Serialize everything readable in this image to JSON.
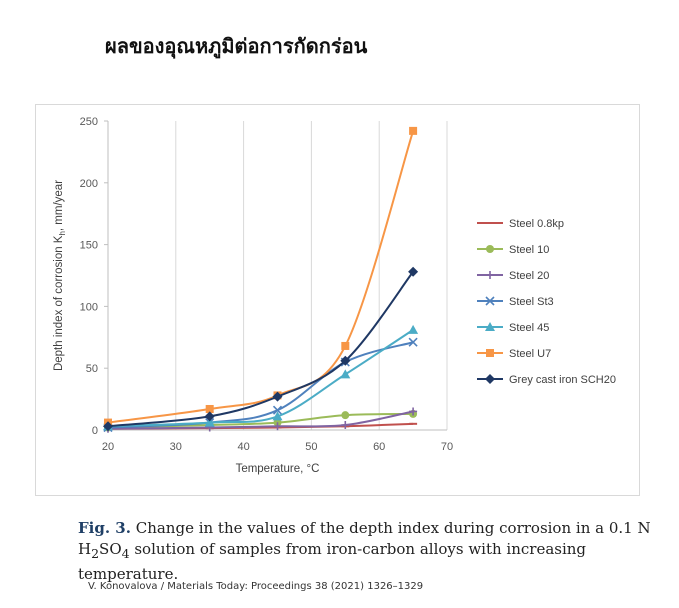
{
  "slide": {
    "title": "ผลของอุณหภูมิต่อการกัดกร่อน"
  },
  "figure": {
    "caption_label": "Fig. 3.",
    "caption_pre": " Change in the values of the depth index during corrosion in a 0.1 N H",
    "caption_sub1": "2",
    "caption_mid": "SO",
    "caption_sub2": "4",
    "caption_post": " solution of samples from iron-carbon alloys with increasing temperature.",
    "citation": "V. Konovalova / Materials Today: Proceedings 38 (2021) 1326–1329"
  },
  "chart_data": {
    "type": "line",
    "title": "",
    "xlabel": "Temperature, °C",
    "ylabel": "Depth index of corrosion K",
    "ylabel_sub": "h",
    "ylabel_suffix": ", mm/year",
    "xlim": [
      20,
      70
    ],
    "ylim": [
      0,
      250
    ],
    "xticks": [
      20,
      30,
      40,
      50,
      60,
      70
    ],
    "yticks": [
      0,
      50,
      100,
      150,
      200,
      250
    ],
    "grid": "vertical",
    "legend_position": "right",
    "x": [
      20,
      35,
      45,
      55,
      65
    ],
    "series": [
      {
        "name": "Steel 0.8kp",
        "color": "#c0504d",
        "marker": "dash",
        "values": [
          1,
          1.5,
          2,
          3,
          5
        ]
      },
      {
        "name": "Steel 10",
        "color": "#9bbb59",
        "marker": "circle",
        "values": [
          2,
          4,
          6,
          12,
          13
        ]
      },
      {
        "name": "Steel 20",
        "color": "#8064a2",
        "marker": "plus",
        "values": [
          1,
          2,
          3,
          4,
          15
        ]
      },
      {
        "name": "Steel St3",
        "color": "#4f81bd",
        "marker": "x",
        "values": [
          2,
          6,
          16,
          55,
          71
        ]
      },
      {
        "name": "Steel 45",
        "color": "#4bacc6",
        "marker": "triangle",
        "values": [
          3,
          6,
          11,
          45,
          81
        ]
      },
      {
        "name": "Steel U7",
        "color": "#f79646",
        "marker": "square",
        "values": [
          6,
          17,
          28,
          68,
          242
        ]
      },
      {
        "name": "Grey cast iron SCH20",
        "color": "#1f3864",
        "marker": "diamond",
        "values": [
          3,
          11,
          27,
          56,
          128
        ]
      }
    ]
  }
}
